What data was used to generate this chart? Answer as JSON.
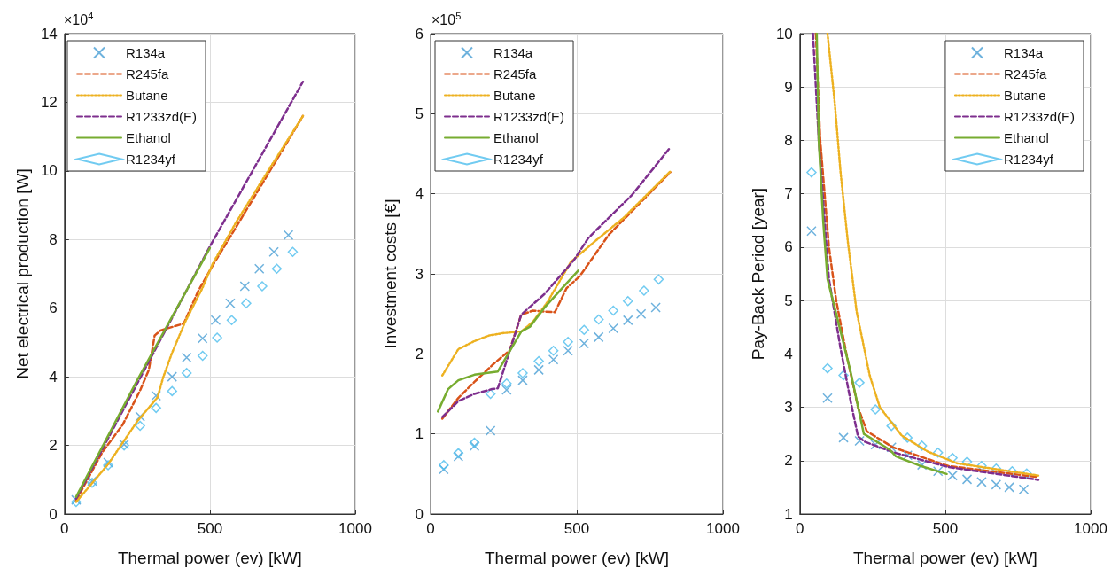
{
  "chart_data": [
    {
      "type": "line",
      "xlabel": "Thermal power (ev) [kW]",
      "ylabel": "Net electrical production [W]",
      "annotations": [
        "×10$^{4}$"
      ],
      "xlim": [
        0,
        1000
      ],
      "xticks": [
        0,
        500,
        1000
      ],
      "ylim": [
        0,
        14
      ],
      "yticks": [
        0,
        2,
        4,
        6,
        8,
        10,
        12,
        14
      ],
      "grid": true,
      "legend": "top left",
      "series": [
        {
          "name": "R134a",
          "type": "scatter",
          "marker": "cross",
          "color": "#4a9fd4",
          "x": [
            40,
            95,
            150,
            205,
            260,
            315,
            370,
            420,
            475,
            520,
            570,
            620,
            670,
            720,
            770
          ],
          "values": [
            0.41,
            0.96,
            1.5,
            2.03,
            2.84,
            3.45,
            4.0,
            4.56,
            5.12,
            5.65,
            6.14,
            6.64,
            7.15,
            7.64,
            8.13
          ]
        },
        {
          "name": "R245fa",
          "line_style": "dashed",
          "color": "#d95319",
          "x": [
            40,
            130,
            200,
            260,
            290,
            310,
            330,
            410,
            460,
            510,
            575,
            820
          ],
          "values": [
            0.4,
            1.8,
            2.6,
            3.6,
            4.2,
            5.2,
            5.35,
            5.55,
            6.5,
            7.25,
            8.15,
            11.6
          ]
        },
        {
          "name": "Butane",
          "line_style": "dotted",
          "color": "#edb120",
          "x": [
            40,
            150,
            250,
            320,
            340,
            370,
            415,
            475,
            510,
            590,
            700,
            820
          ],
          "values": [
            0.35,
            1.45,
            2.7,
            3.4,
            4.0,
            4.7,
            5.6,
            6.6,
            7.3,
            8.5,
            10.0,
            11.6
          ]
        },
        {
          "name": "R1233zd(E)",
          "line_style": "dashed",
          "color": "#7e2f8e",
          "x": [
            40,
            300,
            500,
            820
          ],
          "values": [
            0.45,
            4.6,
            7.8,
            12.6
          ]
        },
        {
          "name": "Ethanol",
          "line_style": "solid",
          "color": "#77ac30",
          "x": [
            40,
            250,
            500
          ],
          "values": [
            0.5,
            3.9,
            7.75
          ]
        },
        {
          "name": "R1234yf",
          "type": "scatter",
          "marker": "diamond",
          "color": "#4dbeee",
          "x": [
            40,
            95,
            150,
            205,
            260,
            315,
            370,
            420,
            475,
            525,
            575,
            625,
            680,
            730,
            785
          ],
          "values": [
            0.35,
            0.91,
            1.42,
            2.0,
            2.57,
            3.09,
            3.58,
            4.11,
            4.61,
            5.14,
            5.65,
            6.14,
            6.64,
            7.15,
            7.64
          ]
        }
      ]
    },
    {
      "type": "line",
      "xlabel": "Thermal power (ev) [kW]",
      "ylabel": "Investment costs [€]",
      "annotations": [
        "×10$^{5}$"
      ],
      "xlim": [
        0,
        1000
      ],
      "xticks": [
        0,
        500,
        1000
      ],
      "ylim": [
        0,
        6
      ],
      "yticks": [
        0,
        1,
        2,
        3,
        4,
        5,
        6
      ],
      "grid": true,
      "legend": "top left",
      "series": [
        {
          "name": "R134a",
          "type": "scatter",
          "marker": "cross",
          "color": "#4a9fd4",
          "x": [
            45,
            95,
            150,
            205,
            260,
            315,
            370,
            420,
            470,
            525,
            575,
            625,
            675,
            720,
            770
          ],
          "values": [
            0.56,
            0.72,
            0.85,
            1.04,
            1.55,
            1.67,
            1.8,
            1.93,
            2.04,
            2.13,
            2.21,
            2.32,
            2.42,
            2.5,
            2.58
          ]
        },
        {
          "name": "R245fa",
          "line_style": "dashed",
          "color": "#d95319",
          "x": [
            40,
            95,
            150,
            220,
            270,
            310,
            350,
            425,
            465,
            510,
            610,
            820
          ],
          "values": [
            1.19,
            1.45,
            1.65,
            1.89,
            2.04,
            2.49,
            2.54,
            2.52,
            2.82,
            2.97,
            3.49,
            4.27
          ]
        },
        {
          "name": "Butane",
          "line_style": "dotted",
          "color": "#edb120",
          "x": [
            40,
            95,
            150,
            200,
            250,
            310,
            350,
            400,
            480,
            560,
            660,
            820
          ],
          "values": [
            1.73,
            2.06,
            2.16,
            2.23,
            2.26,
            2.28,
            2.4,
            2.65,
            3.15,
            3.4,
            3.7,
            4.28
          ]
        },
        {
          "name": "R1233zd(E)",
          "line_style": "dashed",
          "color": "#7e2f8e",
          "x": [
            40,
            95,
            150,
            210,
            230,
            310,
            390,
            490,
            540,
            690,
            820
          ],
          "values": [
            1.21,
            1.41,
            1.5,
            1.56,
            1.57,
            2.49,
            2.75,
            3.17,
            3.45,
            3.99,
            4.58
          ]
        },
        {
          "name": "Ethanol",
          "line_style": "solid",
          "color": "#77ac30",
          "x": [
            25,
            60,
            95,
            150,
            230,
            310,
            340,
            390,
            505
          ],
          "values": [
            1.28,
            1.56,
            1.67,
            1.74,
            1.78,
            2.28,
            2.34,
            2.58,
            3.04
          ]
        },
        {
          "name": "R1234yf",
          "type": "scatter",
          "marker": "diamond",
          "color": "#4dbeee",
          "x": [
            45,
            95,
            150,
            205,
            260,
            315,
            370,
            420,
            470,
            525,
            575,
            625,
            675,
            730,
            780
          ],
          "values": [
            0.61,
            0.76,
            0.89,
            1.5,
            1.63,
            1.76,
            1.91,
            2.04,
            2.15,
            2.3,
            2.43,
            2.54,
            2.66,
            2.79,
            2.93
          ]
        }
      ]
    },
    {
      "type": "line",
      "xlabel": "Thermal power (ev) [kW]",
      "ylabel": "Pay-Back Period [year]",
      "xlim": [
        0,
        1000
      ],
      "xticks": [
        0,
        500,
        1000
      ],
      "ylim": [
        1,
        10
      ],
      "yticks": [
        1,
        2,
        3,
        4,
        5,
        6,
        7,
        8,
        9,
        10
      ],
      "grid": true,
      "legend": "top right",
      "series": [
        {
          "name": "R134a",
          "type": "scatter",
          "marker": "cross",
          "color": "#4a9fd4",
          "x": [
            40,
            95,
            150,
            205,
            260,
            315,
            370,
            420,
            475,
            525,
            575,
            625,
            675,
            720,
            770
          ],
          "values": [
            6.3,
            3.17,
            2.43,
            2.37,
            2.3,
            2.25,
            2.1,
            1.92,
            1.8,
            1.72,
            1.65,
            1.6,
            1.55,
            1.5,
            1.46
          ]
        },
        {
          "name": "R245fa",
          "line_style": "dashed",
          "color": "#d95319",
          "x": [
            55,
            70,
            85,
            100,
            125,
            160,
            200,
            230,
            320,
            510,
            820
          ],
          "values": [
            10,
            8,
            7,
            6,
            5,
            4,
            3,
            2.55,
            2.25,
            1.9,
            1.69
          ]
        },
        {
          "name": "Butane",
          "line_style": "dotted",
          "color": "#edb120",
          "x": [
            95,
            120,
            140,
            165,
            195,
            240,
            275,
            350,
            440,
            540,
            820
          ],
          "values": [
            10,
            8.7,
            7.4,
            6.1,
            4.8,
            3.6,
            3.0,
            2.47,
            2.17,
            1.95,
            1.72
          ]
        },
        {
          "name": "R1233zd(E)",
          "line_style": "dashed",
          "color": "#7e2f8e",
          "x": [
            45,
            65,
            85,
            100,
            140,
            175,
            200,
            225,
            325,
            510,
            820
          ],
          "values": [
            10,
            8,
            6.5,
            5.4,
            4.1,
            3.1,
            2.45,
            2.35,
            2.15,
            1.88,
            1.64
          ]
        },
        {
          "name": "Ethanol",
          "line_style": "solid",
          "color": "#77ac30",
          "x": [
            58,
            65,
            80,
            95,
            125,
            175,
            220,
            290,
            310,
            330,
            410,
            505
          ],
          "values": [
            10,
            8,
            6.5,
            5.4,
            4.75,
            3.65,
            2.5,
            2.27,
            2.2,
            2.08,
            1.91,
            1.75
          ]
        },
        {
          "name": "R1234yf",
          "type": "scatter",
          "marker": "diamond",
          "color": "#4dbeee",
          "x": [
            40,
            95,
            150,
            205,
            260,
            315,
            370,
            420,
            475,
            525,
            575,
            625,
            675,
            730,
            780
          ],
          "values": [
            7.4,
            3.73,
            3.6,
            3.46,
            2.96,
            2.65,
            2.43,
            2.28,
            2.15,
            2.05,
            1.98,
            1.9,
            1.85,
            1.8,
            1.76
          ]
        }
      ]
    }
  ]
}
